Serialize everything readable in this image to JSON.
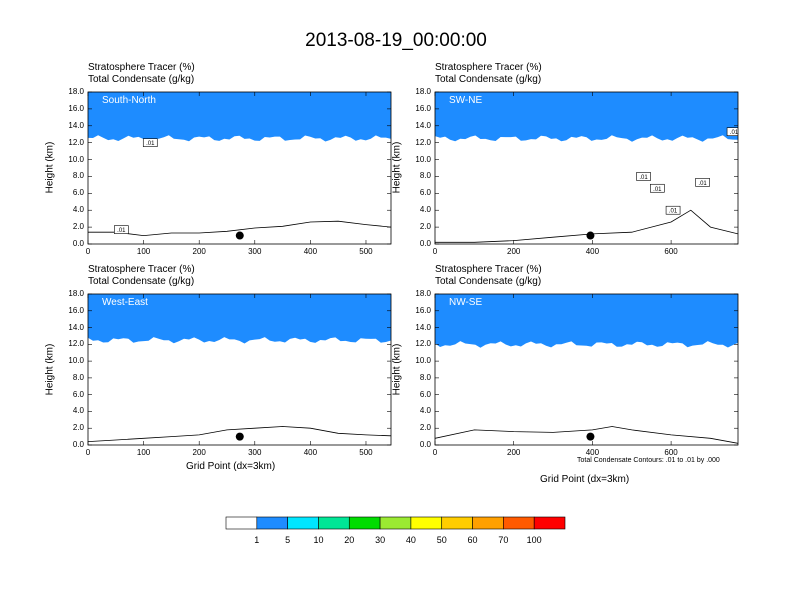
{
  "figure": {
    "title": "2013-08-19_00:00:00",
    "field_labels": [
      "Stratosphere Tracer   (%)",
      "Total Condensate   (g/kg)"
    ],
    "contour_note": "Total Condensate Contours: .01 to .01 by .000",
    "contour_tag": ".01",
    "xlabel": "Grid Point (dx=3km)",
    "ylabel": "Height (km)"
  },
  "colorbar": {
    "colors": [
      "#ffffff",
      "#1e8cff",
      "#00e6ff",
      "#00e696",
      "#00dc00",
      "#9bea32",
      "#ffff00",
      "#ffcd00",
      "#ffa000",
      "#ff5a00",
      "#ff0000"
    ],
    "labels": [
      "1",
      "5",
      "10",
      "20",
      "30",
      "40",
      "50",
      "60",
      "70",
      "100"
    ]
  },
  "chart_data": [
    {
      "type": "contour",
      "panel": "South-North",
      "x_ticks": [
        "0",
        "100",
        "200",
        "300",
        "400",
        "500"
      ],
      "y_ticks": [
        "0.0",
        "2.0",
        "4.0",
        "6.0",
        "8.0",
        "10.0",
        "12.0",
        "14.0",
        "16.0",
        "18.0"
      ],
      "xlim": [
        0,
        545
      ],
      "ylim": [
        0,
        18
      ],
      "tracer_base_km": 12.5,
      "terrain": [
        [
          0,
          1.4
        ],
        [
          50,
          1.4
        ],
        [
          100,
          1.0
        ],
        [
          150,
          1.3
        ],
        [
          200,
          1.3
        ],
        [
          250,
          1.5
        ],
        [
          300,
          1.9
        ],
        [
          350,
          2.1
        ],
        [
          400,
          2.6
        ],
        [
          450,
          2.7
        ],
        [
          500,
          2.3
        ],
        [
          545,
          2.0
        ]
      ],
      "marker": {
        "x": 273,
        "y": 1.0
      },
      "contour_labels": [
        {
          "x": 60,
          "y": 1.7
        },
        {
          "x": 112,
          "y": 12.0
        }
      ]
    },
    {
      "type": "contour",
      "panel": "SW-NE",
      "x_ticks": [
        "0",
        "200",
        "400",
        "600"
      ],
      "y_ticks": [
        "0.0",
        "2.0",
        "4.0",
        "6.0",
        "8.0",
        "10.0",
        "12.0",
        "14.0",
        "16.0",
        "18.0"
      ],
      "xlim": [
        0,
        770
      ],
      "ylim": [
        0,
        18
      ],
      "tracer_base_km": 12.5,
      "terrain": [
        [
          0,
          0.2
        ],
        [
          100,
          0.2
        ],
        [
          200,
          0.4
        ],
        [
          300,
          0.8
        ],
        [
          400,
          1.2
        ],
        [
          500,
          1.4
        ],
        [
          600,
          2.6
        ],
        [
          650,
          4.0
        ],
        [
          700,
          2.0
        ],
        [
          770,
          1.2
        ]
      ],
      "marker": {
        "x": 395,
        "y": 1.0
      },
      "contour_labels": [
        {
          "x": 530,
          "y": 8.0
        },
        {
          "x": 565,
          "y": 6.6
        },
        {
          "x": 605,
          "y": 4.0
        },
        {
          "x": 680,
          "y": 7.3
        },
        {
          "x": 760,
          "y": 13.3
        }
      ]
    },
    {
      "type": "contour",
      "panel": "West-East",
      "x_ticks": [
        "0",
        "100",
        "200",
        "300",
        "400",
        "500"
      ],
      "y_ticks": [
        "0.0",
        "2.0",
        "4.0",
        "6.0",
        "8.0",
        "10.0",
        "12.0",
        "14.0",
        "16.0",
        "18.0"
      ],
      "xlim": [
        0,
        545
      ],
      "ylim": [
        0,
        18
      ],
      "tracer_base_km": 12.5,
      "terrain": [
        [
          0,
          0.4
        ],
        [
          50,
          0.6
        ],
        [
          100,
          0.8
        ],
        [
          150,
          1.0
        ],
        [
          200,
          1.2
        ],
        [
          250,
          1.8
        ],
        [
          300,
          2.0
        ],
        [
          350,
          2.2
        ],
        [
          400,
          2.0
        ],
        [
          450,
          1.4
        ],
        [
          500,
          1.2
        ],
        [
          545,
          1.1
        ]
      ],
      "marker": {
        "x": 273,
        "y": 1.0
      },
      "contour_labels": []
    },
    {
      "type": "contour",
      "panel": "NW-SE",
      "x_ticks": [
        "0",
        "200",
        "400",
        "600"
      ],
      "y_ticks": [
        "0.0",
        "2.0",
        "4.0",
        "6.0",
        "8.0",
        "10.0",
        "12.0",
        "14.0",
        "16.0",
        "18.0"
      ],
      "xlim": [
        0,
        770
      ],
      "ylim": [
        0,
        18
      ],
      "tracer_base_km": 12.0,
      "terrain": [
        [
          0,
          0.8
        ],
        [
          100,
          1.8
        ],
        [
          200,
          1.6
        ],
        [
          300,
          1.5
        ],
        [
          400,
          1.8
        ],
        [
          450,
          2.2
        ],
        [
          500,
          1.8
        ],
        [
          600,
          1.2
        ],
        [
          700,
          0.8
        ],
        [
          770,
          0.2
        ]
      ],
      "marker": {
        "x": 395,
        "y": 1.0
      },
      "contour_labels": []
    }
  ]
}
